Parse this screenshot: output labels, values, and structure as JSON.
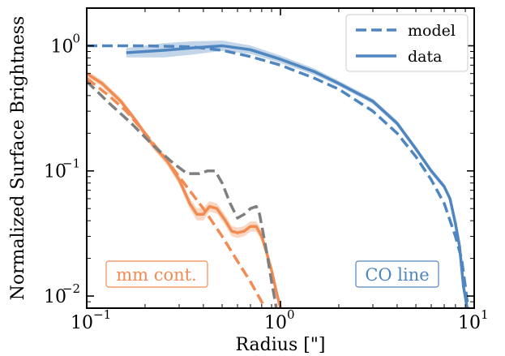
{
  "chart_data": {
    "type": "line",
    "xlabel": "Radius [\"]",
    "ylabel": "Normalized Surface Brightness",
    "xscale": "log",
    "yscale": "log",
    "xlim": [
      0.1,
      10
    ],
    "ylim": [
      0.008,
      2.0
    ],
    "x_ticks": [
      {
        "value": 0.1,
        "label": "10",
        "exp": "−1"
      },
      {
        "value": 1,
        "label": "10",
        "exp": "0"
      },
      {
        "value": 10,
        "label": "10",
        "exp": "1"
      }
    ],
    "y_ticks": [
      {
        "value": 0.01,
        "label": "10",
        "exp": "−2"
      },
      {
        "value": 0.1,
        "label": "10",
        "exp": "−1"
      },
      {
        "value": 1,
        "label": "10",
        "exp": "0"
      }
    ],
    "legend": {
      "position": "top-right",
      "entries": [
        {
          "label": "model",
          "style": "dashed",
          "color": "#4f86c0"
        },
        {
          "label": "data",
          "style": "solid",
          "color": "#4f86c0"
        }
      ]
    },
    "annotations": [
      {
        "text": "mm cont.",
        "color": "#f28b52",
        "position": "bottom-left"
      },
      {
        "text": "CO line",
        "color": "#4f86c0",
        "position": "bottom-right"
      }
    ],
    "series": [
      {
        "id": "co-model",
        "style": "dashed",
        "color": "#4f86c0",
        "x": [
          0.1,
          0.2,
          0.35,
          0.5,
          0.7,
          1.0,
          1.5,
          2.0,
          3.0,
          4.0,
          5.0,
          6.0,
          7.0,
          8.0,
          8.6,
          9.0,
          9.3
        ],
        "y": [
          1.0,
          1.0,
          0.98,
          0.92,
          0.82,
          0.7,
          0.55,
          0.45,
          0.3,
          0.2,
          0.13,
          0.085,
          0.055,
          0.03,
          0.02,
          0.012,
          0.008
        ]
      },
      {
        "id": "co-data",
        "style": "solid",
        "color": "#4f86c0",
        "x": [
          0.16,
          0.25,
          0.35,
          0.5,
          0.7,
          1.0,
          1.5,
          2.0,
          3.0,
          4.0,
          5.0,
          6.0,
          7.0,
          7.5,
          8.0,
          8.4,
          8.8,
          9.2
        ],
        "y": [
          0.88,
          0.92,
          0.96,
          1.0,
          0.93,
          0.78,
          0.62,
          0.5,
          0.36,
          0.24,
          0.15,
          0.1,
          0.075,
          0.06,
          0.038,
          0.025,
          0.012,
          0.008
        ],
        "band": [
          0.09,
          0.14,
          0.13,
          0.1,
          0.08,
          0.07,
          0.06,
          0.05,
          0.05,
          0.05,
          0.05,
          0.05,
          0.05,
          0.06,
          0.07,
          0.09,
          0.12,
          0.14
        ]
      },
      {
        "id": "mm-model",
        "style": "dashed",
        "color": "#f28b52",
        "x": [
          0.1,
          0.13,
          0.16,
          0.2,
          0.25,
          0.3,
          0.4,
          0.5,
          0.6,
          0.7,
          0.8,
          0.9
        ],
        "y": [
          0.55,
          0.4,
          0.3,
          0.2,
          0.13,
          0.09,
          0.05,
          0.03,
          0.019,
          0.013,
          0.009,
          0.006
        ]
      },
      {
        "id": "mm-data",
        "style": "solid",
        "color": "#f28b52",
        "x": [
          0.1,
          0.12,
          0.15,
          0.18,
          0.22,
          0.26,
          0.3,
          0.34,
          0.37,
          0.4,
          0.43,
          0.47,
          0.52,
          0.56,
          0.6,
          0.65,
          0.7,
          0.75,
          0.8,
          0.85,
          0.9,
          0.95,
          1.0
        ],
        "y": [
          0.6,
          0.5,
          0.36,
          0.25,
          0.16,
          0.12,
          0.085,
          0.055,
          0.045,
          0.045,
          0.052,
          0.05,
          0.04,
          0.033,
          0.032,
          0.033,
          0.036,
          0.036,
          0.03,
          0.022,
          0.016,
          0.011,
          0.008
        ],
        "band": [
          0.06,
          0.06,
          0.06,
          0.06,
          0.07,
          0.08,
          0.09,
          0.1,
          0.12,
          0.12,
          0.1,
          0.1,
          0.1,
          0.1,
          0.1,
          0.1,
          0.1,
          0.1,
          0.1,
          0.1,
          0.1,
          0.1,
          0.1
        ]
      },
      {
        "id": "mm-gray-model",
        "style": "dashed",
        "color": "#7f7f7f",
        "x": [
          0.1,
          0.13,
          0.17,
          0.22,
          0.28,
          0.33,
          0.38,
          0.42,
          0.46,
          0.5,
          0.55,
          0.6,
          0.65,
          0.7,
          0.75,
          0.78,
          0.82,
          0.86,
          0.9,
          0.94,
          0.98
        ],
        "y": [
          0.52,
          0.35,
          0.24,
          0.16,
          0.115,
          0.095,
          0.095,
          0.1,
          0.1,
          0.08,
          0.055,
          0.042,
          0.045,
          0.05,
          0.052,
          0.045,
          0.03,
          0.02,
          0.013,
          0.009,
          0.006
        ]
      }
    ]
  }
}
